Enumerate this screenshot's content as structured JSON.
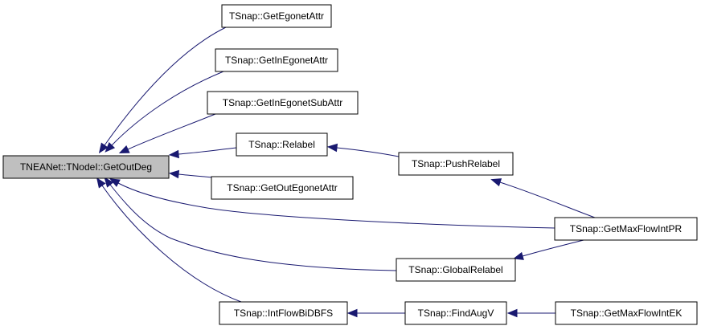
{
  "colors": {
    "node_fill": "#ffffff",
    "focus_fill": "#bfbfbf",
    "border": "#000000",
    "edge": "#191970"
  },
  "nodes": {
    "root": "TNEANet::TNodeI::GetOutDeg",
    "get_egonet_attr": "TSnap::GetEgonetAttr",
    "get_in_egonet_attr": "TSnap::GetInEgonetAttr",
    "get_in_egonet_sub_attr": "TSnap::GetInEgonetSubAttr",
    "relabel": "TSnap::Relabel",
    "get_out_egonet_attr": "TSnap::GetOutEgonetAttr",
    "push_relabel": "TSnap::PushRelabel",
    "get_max_flow_int_pr": "TSnap::GetMaxFlowIntPR",
    "global_relabel": "TSnap::GlobalRelabel",
    "int_flow_bi_dbfs": "TSnap::IntFlowBiDBFS",
    "find_aug_v": "TSnap::FindAugV",
    "get_max_flow_int_ek": "TSnap::GetMaxFlowIntEK"
  },
  "edges": [
    {
      "from": "get_egonet_attr",
      "to": "root"
    },
    {
      "from": "get_in_egonet_attr",
      "to": "root"
    },
    {
      "from": "get_in_egonet_sub_attr",
      "to": "root"
    },
    {
      "from": "relabel",
      "to": "root"
    },
    {
      "from": "get_out_egonet_attr",
      "to": "root"
    },
    {
      "from": "get_max_flow_int_pr",
      "to": "root"
    },
    {
      "from": "global_relabel",
      "to": "root"
    },
    {
      "from": "int_flow_bi_dbfs",
      "to": "root"
    },
    {
      "from": "push_relabel",
      "to": "relabel"
    },
    {
      "from": "get_max_flow_int_pr",
      "to": "push_relabel"
    },
    {
      "from": "get_max_flow_int_pr",
      "to": "global_relabel"
    },
    {
      "from": "find_aug_v",
      "to": "int_flow_bi_dbfs"
    },
    {
      "from": "get_max_flow_int_ek",
      "to": "find_aug_v"
    }
  ]
}
